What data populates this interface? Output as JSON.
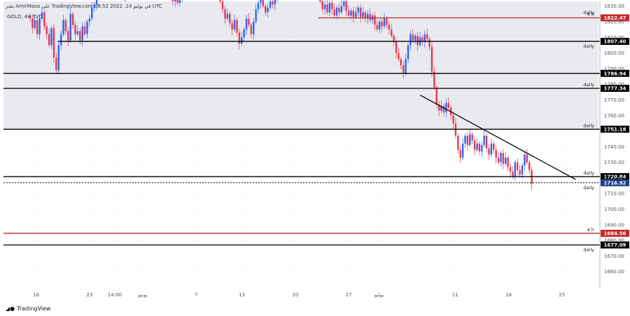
{
  "header": {
    "published": "نشر AmirMasa على TradingView.com في يوليو 14، 2022 08:52 UTC",
    "symbol": "GOLD, 4H TVC"
  },
  "brand": {
    "name": "TradingView",
    "logo_icon": "tradingview-logo-icon"
  },
  "colors": {
    "up": "#2962ff",
    "down": "#e8374a",
    "black_level": "#000000",
    "red_level": "#c62828",
    "grid": "#e6e6e6",
    "band": "#e9eaf0"
  },
  "chart_data": {
    "type": "candlestick",
    "symbol": "GOLD",
    "timeframe": "4H",
    "ylim": [
      1650,
      1833
    ],
    "y_ticks": [
      1660,
      1670,
      1680,
      1690,
      1700,
      1710,
      1720,
      1730,
      1740,
      1750,
      1760,
      1770,
      1780,
      1790,
      1800,
      1810,
      1820,
      1830
    ],
    "y_tick_labels": [
      "1660.00",
      "1670.00",
      "1680.00",
      "1690.00",
      "1700.00",
      "1710.00",
      "1720.00",
      "1730.00",
      "1740.00",
      "1750.00",
      "1760.00",
      "1770.00",
      "1780.00",
      "1790.00",
      "1800.00",
      "1810.00",
      "1820.00",
      "1830.00"
    ],
    "x_ticks": [
      {
        "label": "16",
        "day": 16
      },
      {
        "label": "23",
        "day": 23
      },
      {
        "label": "14:00",
        "day": 26.3
      },
      {
        "label": "يونيو",
        "day": 30
      },
      {
        "label": "7",
        "day": 37
      },
      {
        "label": "13",
        "day": 43
      },
      {
        "label": "20",
        "day": 50
      },
      {
        "label": "27",
        "day": 57
      },
      {
        "label": "يوليو",
        "day": 61
      },
      {
        "label": "11",
        "day": 71
      },
      {
        "label": "18",
        "day": 78
      },
      {
        "label": "25",
        "day": 85
      }
    ],
    "xlim": [
      11.7,
      89.8
    ],
    "levels": [
      {
        "value": 1822.47,
        "label": "1822.47",
        "tag": "4 h",
        "color": "red",
        "from_day": 53
      },
      {
        "value": 1807.4,
        "label": "1807.40",
        "tag": "daily",
        "color": "black",
        "from_day": 18.8
      },
      {
        "value": 1786.94,
        "label": "1786.94",
        "tag": "",
        "color": "black",
        "from_day": 11.7
      },
      {
        "value": 1777.34,
        "label": "1777.34",
        "tag": "daily",
        "color": "black",
        "from_day": 11.7
      },
      {
        "value": 1751.18,
        "label": "1751.18",
        "tag": "daily",
        "color": "black",
        "from_day": 11.7
      },
      {
        "value": 1720.84,
        "label": "1720.84",
        "tag": "daily",
        "color": "black",
        "from_day": 11.7
      },
      {
        "value": 1716.92,
        "label": "1716.92",
        "tag": "daily",
        "color": "dotted",
        "from_day": 11.7
      },
      {
        "value": 1684.56,
        "label": "1684.56",
        "tag": "4 h",
        "color": "red",
        "from_day": 11.7
      },
      {
        "value": 1677.09,
        "label": "1677.09",
        "tag": "daily",
        "color": "black",
        "from_day": 11.7
      }
    ],
    "top_tag": "daily",
    "trendline": {
      "from": {
        "day": 66.4,
        "value": 1773
      },
      "to": {
        "day": 86.8,
        "value": 1719
      }
    },
    "shaded_band": [
      1751.18,
      1833
    ],
    "closes": [
      1822,
      1816,
      1821,
      1812,
      1822,
      1826,
      1817,
      1812,
      1805,
      1816,
      1797,
      1789,
      1805,
      1812,
      1821,
      1814,
      1808,
      1825,
      1818,
      1812,
      1814,
      1808,
      1817,
      1812,
      1820,
      1822,
      1829,
      1831,
      1840,
      1845,
      1848,
      1850,
      1846,
      1848,
      1844,
      1846,
      1841,
      1842,
      1838,
      1836,
      1840,
      1843,
      1839,
      1841,
      1837,
      1838,
      1842,
      1845,
      1843,
      1846,
      1844,
      1842,
      1840,
      1845,
      1843,
      1846,
      1848,
      1845,
      1847,
      1844,
      1833,
      1834,
      1832,
      1836,
      1838,
      1840,
      1842,
      1838,
      1840,
      1844,
      1847,
      1845,
      1843,
      1846,
      1848,
      1844,
      1842,
      1845,
      1846,
      1843,
      1833,
      1828,
      1822,
      1825,
      1819,
      1815,
      1821,
      1813,
      1806,
      1810,
      1815,
      1822,
      1818,
      1812,
      1820,
      1828,
      1832,
      1835,
      1830,
      1826,
      1829,
      1833,
      1831,
      1834,
      1845,
      1848,
      1850,
      1846,
      1844,
      1847,
      1849,
      1845,
      1843,
      1846,
      1848,
      1844,
      1842,
      1845,
      1847,
      1843,
      1846,
      1848,
      1833,
      1828,
      1831,
      1826,
      1832,
      1828,
      1824,
      1829,
      1826,
      1830,
      1833,
      1827,
      1824,
      1827,
      1823,
      1826,
      1829,
      1823,
      1826,
      1822,
      1825,
      1821,
      1824,
      1818,
      1815,
      1820,
      1817,
      1822,
      1818,
      1815,
      1811,
      1807,
      1800,
      1796,
      1792,
      1787,
      1796,
      1805,
      1812,
      1808,
      1811,
      1805,
      1810,
      1807,
      1812,
      1809,
      1804,
      1788,
      1778,
      1767,
      1763,
      1766,
      1762,
      1768,
      1765,
      1760,
      1755,
      1747,
      1738,
      1733,
      1742,
      1747,
      1741,
      1748,
      1744,
      1738,
      1742,
      1737,
      1741,
      1747,
      1739,
      1735,
      1742,
      1738,
      1733,
      1730,
      1736,
      1729,
      1733,
      1727,
      1724,
      1721,
      1730,
      1725,
      1722,
      1728,
      1735,
      1730,
      1725,
      1716
    ]
  }
}
